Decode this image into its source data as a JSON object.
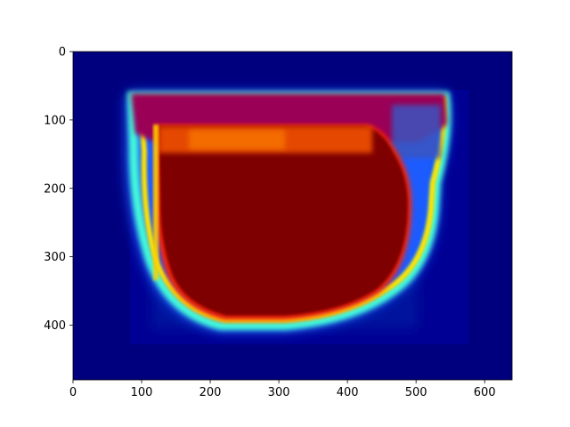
{
  "chart_data": {
    "type": "heatmap",
    "title": "",
    "xlabel": "",
    "ylabel": "",
    "xlim": [
      0,
      640
    ],
    "ylim": [
      480,
      0
    ],
    "x_ticks": [
      0,
      100,
      200,
      300,
      400,
      500,
      600
    ],
    "y_ticks": [
      0,
      100,
      200,
      300,
      400
    ],
    "colormap": "jet",
    "regions": [
      {
        "name": "background",
        "value": 0.0,
        "color": "#00007f"
      },
      {
        "name": "inner-frame",
        "value": 0.05,
        "color": "#000092",
        "x": [
          83,
          575
        ],
        "y": [
          55,
          430
        ]
      },
      {
        "name": "outer-rim",
        "value": 0.45,
        "color": "#37ffc0",
        "x": [
          142,
          507
        ],
        "y": [
          63,
          370
        ]
      },
      {
        "name": "upper-band",
        "value": 0.85,
        "color": "#a00050",
        "x": [
          147,
          500
        ],
        "y": [
          78,
          130
        ]
      },
      {
        "name": "core",
        "value": 1.0,
        "color": "#7f0000",
        "x": [
          175,
          465
        ],
        "y": [
          110,
          365
        ]
      },
      {
        "name": "hot-strip",
        "value": 0.8,
        "color": "#ff6a00",
        "x": [
          175,
          320
        ],
        "y": [
          112,
          140
        ]
      }
    ],
    "grid": false,
    "legend": "none"
  }
}
